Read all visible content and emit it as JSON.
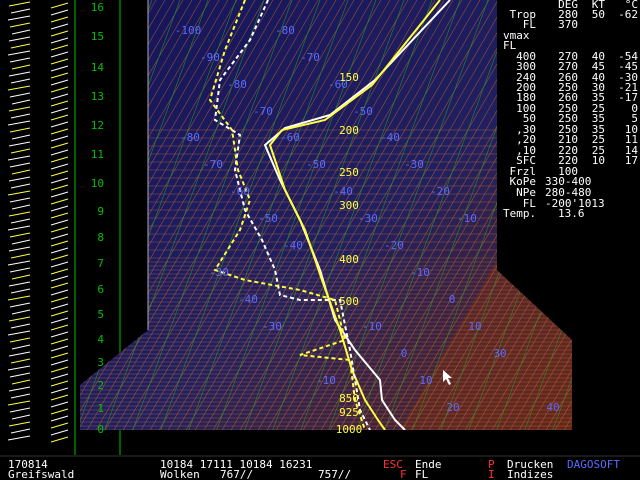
{
  "altitude_scale": [
    "0",
    "1",
    "2",
    "3",
    "4",
    "5",
    "6",
    "7",
    "8",
    "9",
    "10",
    "11",
    "12",
    "13",
    "14",
    "15",
    "16"
  ],
  "isotherm_labels": [
    "-100",
    "-80",
    "-90",
    "-70",
    "-80",
    "-60",
    "-70",
    "-50",
    "-80",
    "-60",
    "-40",
    "-70",
    "-50",
    "-30",
    "-60",
    "-40",
    "-20",
    "-50",
    "-30",
    "-10",
    "-40",
    "-20",
    "-30",
    "-10",
    "-40",
    "0",
    "-30",
    "-10",
    "10",
    "0",
    "30",
    "-10",
    "10",
    "20",
    "40"
  ],
  "isobar_labels": [
    "150",
    "200",
    "250",
    "300",
    "400",
    "500",
    "850",
    "925",
    "1000"
  ],
  "table": {
    "header": [
      "DEG",
      "KT",
      "°C"
    ],
    "rows": [
      [
        "Trop",
        "280",
        "50",
        "-62"
      ],
      [
        "FL",
        "370"
      ],
      [
        "vmax"
      ],
      [
        "FL"
      ],
      [
        "400",
        "270",
        "40",
        "-54"
      ],
      [
        "300",
        "270",
        "45",
        "-45"
      ],
      [
        "240",
        "260",
        "40",
        "-30"
      ],
      [
        "200",
        "250",
        "30",
        "-21"
      ],
      [
        "180",
        "260",
        "35",
        "-17"
      ],
      [
        "100",
        "250",
        "25",
        "0"
      ],
      [
        "50",
        "250",
        "35",
        "5"
      ],
      [
        ",30",
        "250",
        "35",
        "10"
      ],
      [
        ",20",
        "210",
        "25",
        "11"
      ],
      [
        ",10",
        "220",
        "25",
        "14"
      ],
      [
        "SFC",
        "220",
        "10",
        "17"
      ],
      [
        "Frzl",
        "100"
      ],
      [
        "KoPe",
        "330-400"
      ],
      [
        "NPe",
        "280-480"
      ]
    ],
    "surface": {
      "fl_label": "FL",
      "fl_value": "-200'1013",
      "temp_label": "Temp.",
      "temp_value": "13.6"
    }
  },
  "status": {
    "date": "170814",
    "station": "Greifswald",
    "codes": "10184 17111 10184 16231",
    "clouds_label": "Wolken",
    "clouds_1": "767//",
    "clouds_2": "757//",
    "keys": [
      {
        "key": "ESC",
        "action": "Ende"
      },
      {
        "key": "F",
        "action": "FL"
      },
      {
        "key": "P",
        "action": "Drucken"
      },
      {
        "key": "I",
        "action": "Indizes"
      }
    ],
    "brand": "DAGOSOFT"
  }
}
